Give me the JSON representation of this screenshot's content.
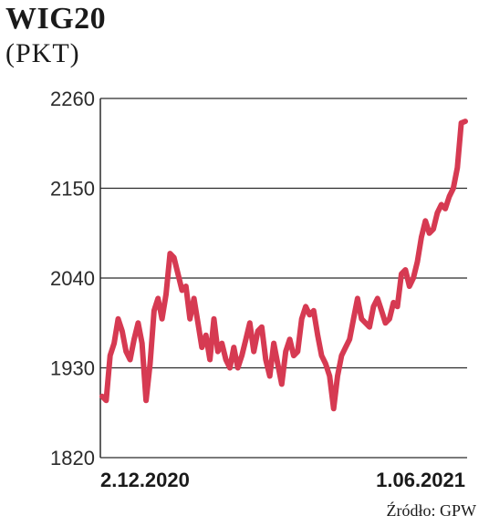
{
  "chart_data": {
    "type": "line",
    "title": "WIG20",
    "subtitle": "(PKT)",
    "source": "Źródło: GPW",
    "ylim": [
      1820,
      2260
    ],
    "yticks": [
      "2260",
      "2150",
      "2040",
      "1930",
      "1820"
    ],
    "ytick_values": [
      2260,
      2150,
      2040,
      1930,
      1820
    ],
    "x_start_label": "2.12.2020",
    "x_end_label": "1.06.2021",
    "grid": true,
    "line_color": "#d63a52",
    "series": [
      {
        "values": [
          1895,
          1890,
          1945,
          1960,
          1990,
          1975,
          1950,
          1940,
          1965,
          1985,
          1960,
          1890,
          1935,
          2000,
          2015,
          1990,
          2020,
          2070,
          2065,
          2045,
          2025,
          2030,
          1990,
          2015,
          1985,
          1955,
          1970,
          1940,
          1990,
          1950,
          1960,
          1940,
          1930,
          1955,
          1930,
          1945,
          1965,
          1985,
          1950,
          1975,
          1980,
          1940,
          1920,
          1960,
          1935,
          1910,
          1950,
          1965,
          1945,
          1950,
          1990,
          2005,
          1995,
          2000,
          1970,
          1945,
          1935,
          1920,
          1880,
          1920,
          1945,
          1955,
          1965,
          1990,
          2015,
          1990,
          1985,
          1980,
          2005,
          2015,
          2000,
          1985,
          1990,
          2010,
          2005,
          2045,
          2050,
          2030,
          2040,
          2060,
          2090,
          2110,
          2095,
          2100,
          2120,
          2130,
          2125,
          2140,
          2150,
          2175,
          2230,
          2232
        ]
      }
    ]
  }
}
